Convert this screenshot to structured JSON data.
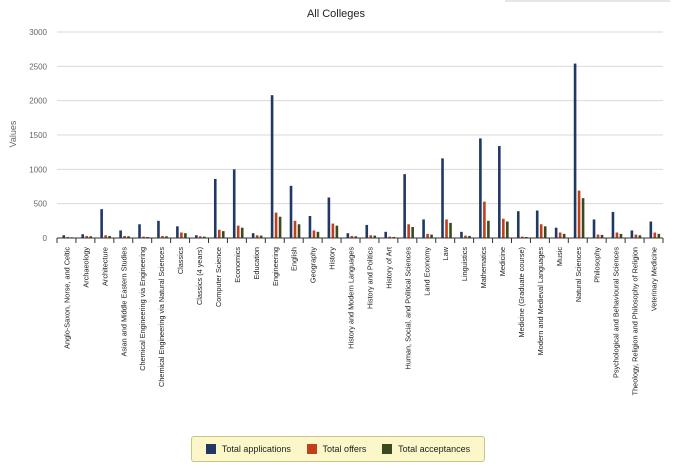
{
  "chart_data": {
    "type": "bar",
    "title": "All Colleges",
    "xlabel": "",
    "ylabel": "Values",
    "ylim": [
      0,
      3000
    ],
    "yticks": [
      0,
      500,
      1000,
      1500,
      2000,
      2500,
      3000
    ],
    "grid": true,
    "legend_position": "bottom",
    "categories": [
      "Anglo-Saxon, Norse, and Celtic",
      "Archaeology",
      "Architecture",
      "Asian and Middle Eastern Studies",
      "Chemical Engineering via Engineering",
      "Chemical Engineering via Natural Sciences",
      "Classics",
      "Classics (4 years)",
      "Computer Science",
      "Economics",
      "Education",
      "Engineering",
      "English",
      "Geography",
      "History",
      "History and Modern Languages",
      "History and Politics",
      "History of Art",
      "Human, Social, and Political Sciences",
      "Land Economy",
      "Law",
      "Linguistics",
      "Mathematics",
      "Medicine",
      "Medicine (Graduate course)",
      "Modern and Medieval Languages",
      "Music",
      "Natural Sciences",
      "Philosophy",
      "Psychological and Behavioural Sciences",
      "Theology, Religion and Philosophy of Religion",
      "Veterinary Medicine"
    ],
    "series": [
      {
        "name": "Total applications",
        "color": "#1f3864",
        "values": [
          40,
          55,
          420,
          110,
          200,
          250,
          170,
          40,
          860,
          1000,
          70,
          2080,
          760,
          320,
          590,
          70,
          190,
          90,
          930,
          270,
          1160,
          90,
          1450,
          1340,
          390,
          400,
          150,
          2540,
          270,
          380,
          110,
          240
        ]
      },
      {
        "name": "Total offers",
        "color": "#c0401b",
        "values": [
          15,
          30,
          40,
          30,
          20,
          30,
          80,
          25,
          120,
          180,
          40,
          370,
          250,
          110,
          210,
          30,
          40,
          20,
          200,
          60,
          270,
          35,
          530,
          280,
          20,
          200,
          80,
          690,
          50,
          80,
          50,
          80
        ]
      },
      {
        "name": "Total acceptances",
        "color": "#3a4a1e",
        "values": [
          10,
          25,
          30,
          25,
          15,
          25,
          70,
          20,
          100,
          150,
          35,
          310,
          200,
          90,
          180,
          25,
          35,
          15,
          160,
          50,
          220,
          30,
          250,
          240,
          15,
          170,
          60,
          580,
          45,
          60,
          40,
          60
        ]
      }
    ]
  }
}
